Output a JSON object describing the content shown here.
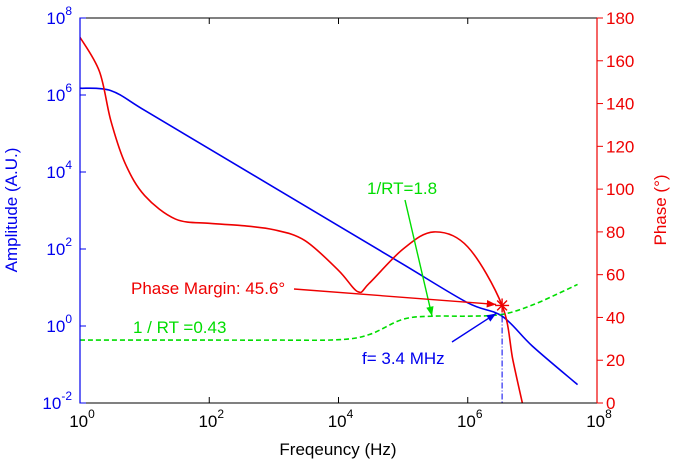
{
  "chart_data": {
    "type": "line",
    "xlabel": "Freqeuncy (Hz)",
    "ylabel_left": "Amplitude (A.U.)",
    "ylabel_right": "Phase (°)",
    "x_scale": "log",
    "xlim": [
      1,
      100000000
    ],
    "ylim_left": [
      0.01,
      100000000
    ],
    "ylim_left_scale": "log",
    "ylim_right": [
      0,
      180
    ],
    "x_ticks": [
      {
        "base": "10",
        "exp": "0"
      },
      {
        "base": "10",
        "exp": "2"
      },
      {
        "base": "10",
        "exp": "4"
      },
      {
        "base": "10",
        "exp": "6"
      },
      {
        "base": "10",
        "exp": "8"
      }
    ],
    "y_left_ticks": [
      {
        "base": "10",
        "exp": "-2"
      },
      {
        "base": "10",
        "exp": "0"
      },
      {
        "base": "10",
        "exp": "2"
      },
      {
        "base": "10",
        "exp": "4"
      },
      {
        "base": "10",
        "exp": "6"
      },
      {
        "base": "10",
        "exp": "8"
      }
    ],
    "y_right_ticks": [
      "0",
      "20",
      "40",
      "60",
      "80",
      "100",
      "120",
      "140",
      "160",
      "180"
    ],
    "grid": false,
    "colors": {
      "amplitude": "#0000ee",
      "phase": "#ee0000",
      "rt": "#00dd00"
    },
    "series": [
      {
        "axis": "left",
        "color": "amplitude",
        "style": "solid",
        "x": [
          1,
          3,
          10,
          100,
          1000,
          10000,
          100000,
          1000000,
          3400000,
          10000000,
          50000000
        ],
        "y": [
          1500000,
          1300000,
          400000,
          40000,
          4000,
          400,
          40,
          4,
          1.8,
          0.3,
          0.03
        ]
      },
      {
        "axis": "right",
        "color": "phase",
        "style": "solid",
        "x": [
          1,
          2,
          3,
          5,
          10,
          30,
          100,
          300,
          1000,
          3000,
          10000,
          20000,
          30000,
          100000,
          300000,
          1000000,
          3400000,
          5000000,
          7000000
        ],
        "y": [
          171,
          155,
          132,
          112,
          97,
          86,
          84,
          83,
          81,
          76,
          62,
          52,
          56,
          72,
          80,
          73,
          45.6,
          20,
          0
        ]
      },
      {
        "axis": "left",
        "color": "rt",
        "style": "dashed",
        "x": [
          1,
          10,
          100,
          1000,
          10000,
          30000,
          100000,
          300000,
          1000000,
          3400000,
          10000000,
          30000000,
          50000000
        ],
        "y": [
          0.43,
          0.43,
          0.43,
          0.43,
          0.44,
          0.6,
          1.5,
          1.8,
          1.8,
          2.0,
          3.5,
          8,
          12
        ]
      }
    ],
    "annotations": [
      {
        "text": "1/RT=1.8",
        "color": "rt"
      },
      {
        "text": "1 / RT =0.43",
        "color": "rt"
      },
      {
        "text": "Phase Margin: 45.6°",
        "color": "phase"
      },
      {
        "text": "f= 3.4 MHz",
        "color": "amplitude"
      }
    ],
    "marker": {
      "x": 3400000,
      "phase": 45.6
    }
  }
}
